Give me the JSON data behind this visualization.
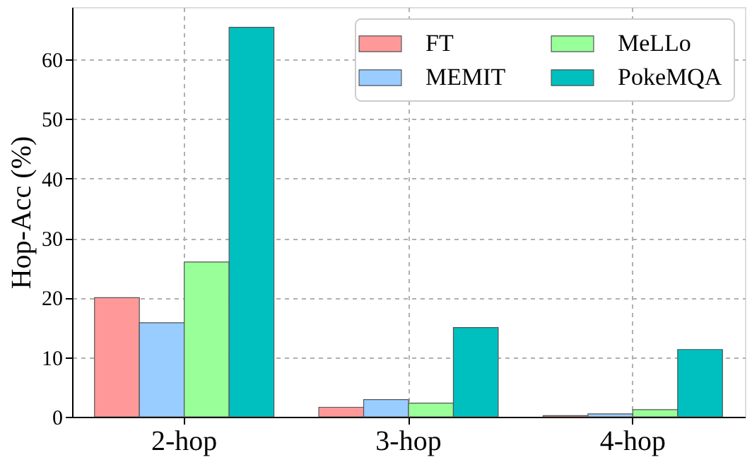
{
  "chart_data": {
    "type": "bar",
    "ylabel": "Hop-Acc (%)",
    "categories": [
      "2-hop",
      "3-hop",
      "4-hop"
    ],
    "series": [
      {
        "name": "FT",
        "color": "#ff9999",
        "values": [
          20.0,
          1.6,
          0.2
        ]
      },
      {
        "name": "MEMIT",
        "color": "#99ccff",
        "values": [
          15.8,
          2.9,
          0.5
        ]
      },
      {
        "name": "MeLLo",
        "color": "#99ff99",
        "values": [
          26.0,
          2.3,
          1.2
        ]
      },
      {
        "name": "PokeMQA",
        "color": "#00bfbf",
        "values": [
          65.4,
          15.0,
          11.3
        ]
      }
    ],
    "ylim": [
      0,
      68.8
    ],
    "yticks": [
      0,
      10,
      20,
      30,
      40,
      50,
      60
    ],
    "grid": true,
    "legend": "top right"
  }
}
